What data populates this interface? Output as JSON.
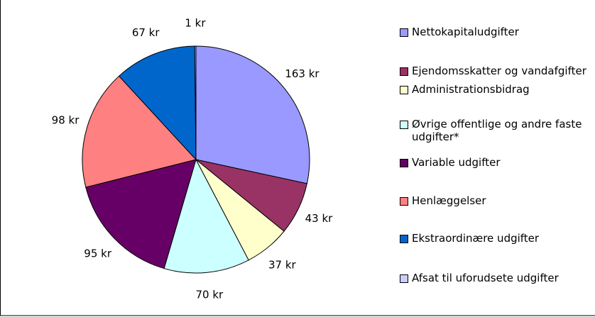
{
  "chart_data": {
    "type": "pie",
    "categories": [
      "Nettokapitaludgifter",
      "Ejendomsskatter og vandafgifter",
      "Administrationsbidrag",
      "Øvrige offentlige og andre faste udgifter*",
      "Variable udgifter",
      "Henlæggelser",
      "Ekstraordinære udgifter",
      "Afsat til uforudsete udgifter"
    ],
    "values": [
      163,
      43,
      37,
      70,
      95,
      98,
      67,
      1
    ],
    "value_labels": [
      "163 kr",
      "43 kr",
      "37 kr",
      "70 kr",
      "95 kr",
      "98 kr",
      "67 kr",
      "1 kr"
    ],
    "colors": [
      "#9999ff",
      "#993366",
      "#ffffcc",
      "#ccffff",
      "#660066",
      "#ff8080",
      "#0066cc",
      "#ccccff"
    ],
    "legend": "right"
  }
}
